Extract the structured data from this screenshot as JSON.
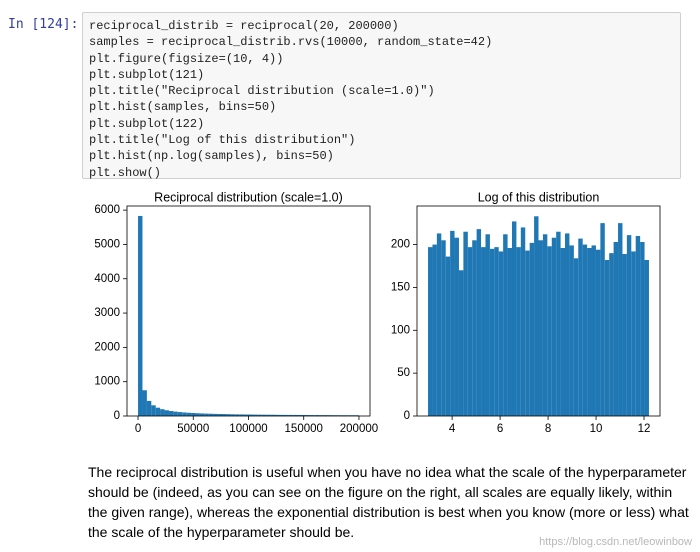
{
  "cell": {
    "prompt": "In [124]:",
    "code": [
      "reciprocal_distrib = reciprocal(20, 200000)",
      "samples = reciprocal_distrib.rvs(10000, random_state=42)",
      "plt.figure(figsize=(10, 4))",
      "plt.subplot(121)",
      "plt.title(\"Reciprocal distribution (scale=1.0)\")",
      "plt.hist(samples, bins=50)",
      "plt.subplot(122)",
      "plt.title(\"Log of this distribution\")",
      "plt.hist(np.log(samples), bins=50)",
      "plt.show()"
    ]
  },
  "chart_data": [
    {
      "type": "histogram",
      "title": "Reciprocal distribution (scale=1.0)",
      "color": "#1f77b4",
      "bins": [
        20,
        4019.6,
        8019.2,
        12018.8,
        16018.4,
        20018,
        24017.6,
        28017.2,
        32016.8,
        36016.4,
        40016,
        44015.6,
        48015.2,
        52014.8,
        56014.4,
        60014,
        64013.6,
        68013.2,
        72012.8,
        76012.4,
        80012,
        84011.6,
        88011.2,
        92010.8,
        96010.4,
        100010,
        104009.6,
        108009.2,
        112008.8,
        116008.4,
        120008,
        124007.6,
        128007.2,
        132006.8,
        136006.4,
        140006,
        144005.6,
        148005.2,
        152004.8,
        156004.4,
        160004,
        164003.6,
        168003.2,
        172002.8,
        176002.4,
        180002,
        184001.6,
        188001.2,
        192000.8,
        196000.4,
        200000
      ],
      "values": [
        5830,
        750,
        440,
        312,
        242,
        198,
        167,
        145,
        128,
        114,
        103,
        94,
        87,
        80,
        75,
        70,
        66,
        62,
        59,
        56,
        53,
        50,
        48,
        46,
        44,
        43,
        41,
        39,
        38,
        37,
        36,
        34,
        33,
        32,
        32,
        31,
        30,
        29,
        28,
        27,
        27,
        26,
        26,
        25,
        24,
        24,
        23,
        23,
        22,
        22
      ],
      "xlim": [
        -9979,
        209999
      ],
      "xticks": [
        0,
        50000,
        100000,
        150000,
        200000
      ],
      "ylim": [
        0,
        6120
      ],
      "yticks": [
        0,
        1000,
        2000,
        3000,
        4000,
        5000,
        6000
      ]
    },
    {
      "type": "histogram",
      "title": "Log of this distribution",
      "color": "#1f77b4",
      "bins": [
        2.996,
        3.18,
        3.364,
        3.549,
        3.733,
        3.917,
        4.101,
        4.285,
        4.47,
        4.654,
        4.838,
        5.022,
        5.206,
        5.391,
        5.575,
        5.759,
        5.943,
        6.127,
        6.312,
        6.496,
        6.68,
        6.864,
        7.048,
        7.233,
        7.417,
        7.601,
        7.785,
        7.969,
        8.154,
        8.338,
        8.522,
        8.706,
        8.89,
        9.075,
        9.259,
        9.443,
        9.627,
        9.811,
        9.996,
        10.18,
        10.364,
        10.548,
        10.732,
        10.917,
        11.101,
        11.285,
        11.469,
        11.653,
        11.838,
        12.022,
        12.206
      ],
      "values": [
        197,
        200,
        213,
        205,
        186,
        216,
        208,
        170,
        215,
        197,
        205,
        218,
        197,
        212,
        195,
        197,
        192,
        212,
        196,
        227,
        197,
        220,
        193,
        202,
        233,
        205,
        212,
        198,
        208,
        215,
        196,
        213,
        199,
        184,
        207,
        200,
        196,
        199,
        194,
        225,
        182,
        190,
        203,
        225,
        189,
        211,
        192,
        210,
        203,
        182
      ],
      "xlim": [
        2.536,
        12.666
      ],
      "xticks": [
        4,
        6,
        8,
        10,
        12
      ],
      "ylim": [
        0,
        245
      ],
      "yticks": [
        0,
        50,
        100,
        150,
        200
      ]
    }
  ],
  "markdown": {
    "text": "The reciprocal distribution is useful when you have no idea what the scale of the hyperparameter should be (indeed, as you can see on the figure on the right, all scales are equally likely, within the given range), whereas the exponential distribution is best when you know (more or less) what the scale of the hyperparameter should be."
  },
  "watermark": "https://blog.csdn.net/leowinbow"
}
